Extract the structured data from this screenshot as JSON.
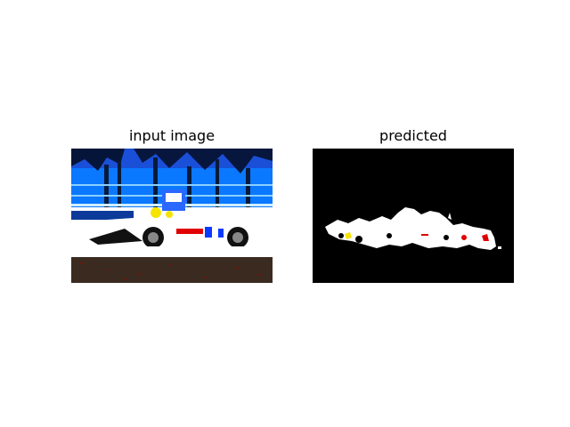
{
  "figure": {
    "panels": [
      {
        "title": "input image"
      },
      {
        "title": "predicted"
      }
    ]
  },
  "colors": {
    "background": "#ffffff",
    "mask_background": "#000000",
    "mask_foreground": "#ffffff",
    "mask_accent_red": "#e00000",
    "mask_accent_yellow": "#f5e400",
    "sky_blue": "#0a78ff",
    "track_dark": "#3a2a20"
  }
}
